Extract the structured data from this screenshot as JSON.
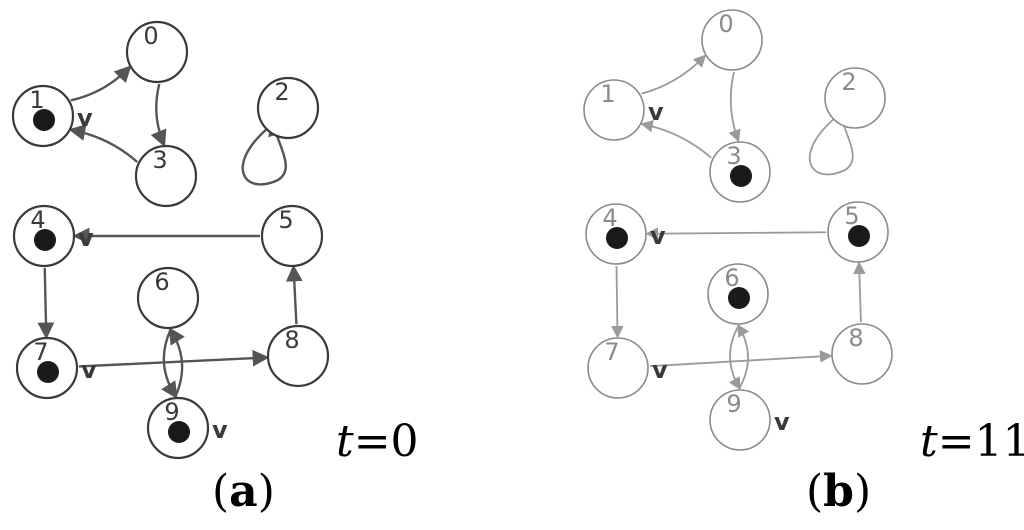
{
  "panels": [
    {
      "label_open": "(",
      "label_letter": "a",
      "label_close": ")",
      "time_var": "t",
      "time_value": "=0",
      "nodes": [
        {
          "id": "0",
          "token": false,
          "check": false
        },
        {
          "id": "1",
          "token": true,
          "check": true
        },
        {
          "id": "2",
          "token": false,
          "check": false
        },
        {
          "id": "3",
          "token": false,
          "check": false
        },
        {
          "id": "4",
          "token": true,
          "check": true
        },
        {
          "id": "5",
          "token": false,
          "check": false
        },
        {
          "id": "6",
          "token": false,
          "check": false
        },
        {
          "id": "7",
          "token": true,
          "check": true
        },
        {
          "id": "8",
          "token": false,
          "check": false
        },
        {
          "id": "9",
          "token": true,
          "check": true
        }
      ],
      "edges": [
        [
          "1",
          "0"
        ],
        [
          "0",
          "3"
        ],
        [
          "3",
          "1"
        ],
        [
          "2",
          "2"
        ],
        [
          "5",
          "4"
        ],
        [
          "4",
          "7"
        ],
        [
          "7",
          "8"
        ],
        [
          "8",
          "5"
        ],
        [
          "6",
          "9"
        ],
        [
          "9",
          "6"
        ]
      ]
    },
    {
      "label_open": "(",
      "label_letter": "b",
      "label_close": ")",
      "time_var": "t",
      "time_value": "=11",
      "nodes": [
        {
          "id": "0",
          "token": false,
          "check": false
        },
        {
          "id": "1",
          "token": false,
          "check": true
        },
        {
          "id": "2",
          "token": false,
          "check": false
        },
        {
          "id": "3",
          "token": true,
          "check": false
        },
        {
          "id": "4",
          "token": true,
          "check": true
        },
        {
          "id": "5",
          "token": true,
          "check": false
        },
        {
          "id": "6",
          "token": true,
          "check": false
        },
        {
          "id": "7",
          "token": false,
          "check": true
        },
        {
          "id": "8",
          "token": false,
          "check": false
        },
        {
          "id": "9",
          "token": false,
          "check": true
        }
      ],
      "edges": [
        [
          "1",
          "0"
        ],
        [
          "0",
          "3"
        ],
        [
          "3",
          "1"
        ],
        [
          "2",
          "2"
        ],
        [
          "5",
          "4"
        ],
        [
          "4",
          "7"
        ],
        [
          "7",
          "8"
        ],
        [
          "8",
          "5"
        ],
        [
          "6",
          "9"
        ],
        [
          "9",
          "6"
        ]
      ]
    }
  ],
  "check_mark": "v"
}
